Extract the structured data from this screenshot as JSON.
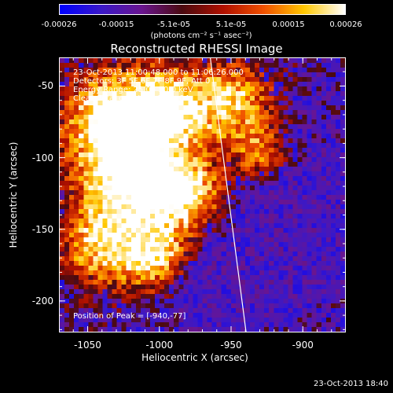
{
  "colorbar": {
    "ticks": [
      "-0.00026",
      "-0.00015",
      "-5.1e-05",
      "5.1e-05",
      "0.00015",
      "0.00026"
    ],
    "units": "(photons cm⁻² s⁻¹ asec⁻²)",
    "colors": [
      "#0000ff",
      "#3a18c8",
      "#6a1590",
      "#4a0a10",
      "#b01000",
      "#f05000",
      "#ffc800",
      "#ffffff"
    ]
  },
  "title": "Reconstructed RHESSI Image",
  "info": {
    "time_range": "23-Oct-2013 11:00:48.000 to 11:06:26.000",
    "detectors": "Detectors: 3F 5F 6F 7F 8F 9F, Att 0",
    "energy": "Energy Range: 25.0 - 50.0 keV",
    "method": "Clean     Total counts: 1.21E+04",
    "peak": "Position of Peak = [-940,-77]"
  },
  "axes": {
    "xlabel": "Heliocentric X (arcsec)",
    "ylabel": "Heliocentric Y (arcsec)",
    "xticks": [
      "-1050",
      "-1000",
      "-950",
      "-900"
    ],
    "yticks": [
      "-50",
      "-100",
      "-150",
      "-200"
    ],
    "xlim": [
      -1070,
      -870
    ],
    "ylim": [
      -222,
      -30
    ]
  },
  "limb_line": {
    "x1": -965,
    "y1": -30,
    "x2": -940,
    "y2": -222,
    "color": "#ffffff"
  },
  "footer": "23-Oct-2013 18:40"
}
